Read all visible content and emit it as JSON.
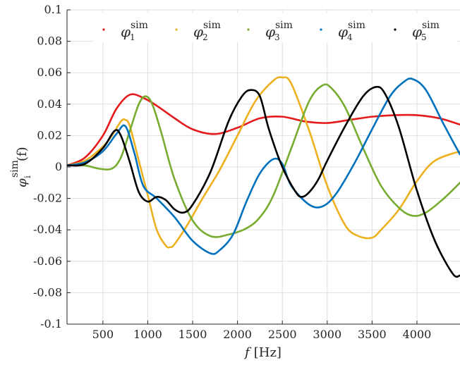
{
  "chart_data": {
    "type": "line",
    "xlabel": {
      "var": "f",
      "unit": "[Hz]"
    },
    "ylabel": {
      "base": "φ",
      "sup": "sim",
      "sub": "i",
      "arg": "(f)"
    },
    "xlim": [
      100,
      4480
    ],
    "ylim": [
      -0.1,
      0.1
    ],
    "xticks": [
      500,
      1000,
      1500,
      2000,
      2500,
      3000,
      3500,
      4000
    ],
    "yticks": [
      -0.1,
      -0.08,
      -0.06,
      -0.04,
      -0.02,
      0,
      0.02,
      0.04,
      0.06,
      0.08,
      0.1
    ],
    "ytick_labels": [
      "-0.1",
      "-0.08",
      "-0.06",
      "-0.04",
      "-0.02",
      "0",
      "0.02",
      "0.04",
      "0.06",
      "0.08",
      "0.1"
    ],
    "grid": true,
    "legend_position": "top",
    "series": [
      {
        "name": "φ1 sim",
        "base": "φ",
        "sub": "1",
        "sup": "sim",
        "color": "#e41a1c",
        "x": [
          100,
          300,
          500,
          650,
          800,
          950,
          1100,
          1300,
          1500,
          1750,
          2000,
          2250,
          2500,
          2750,
          3000,
          3250,
          3500,
          3750,
          4000,
          4250,
          4480
        ],
        "y": [
          0.001,
          0.006,
          0.02,
          0.037,
          0.046,
          0.044,
          0.039,
          0.031,
          0.024,
          0.021,
          0.025,
          0.031,
          0.032,
          0.029,
          0.028,
          0.03,
          0.032,
          0.033,
          0.033,
          0.031,
          0.027
        ]
      },
      {
        "name": "φ2 sim",
        "base": "φ",
        "sub": "2",
        "sup": "sim",
        "color": "#edb120",
        "x": [
          100,
          300,
          500,
          600,
          700,
          750,
          800,
          900,
          1000,
          1100,
          1200,
          1250,
          1300,
          1450,
          1600,
          1800,
          2000,
          2200,
          2400,
          2500,
          2600,
          2800,
          3000,
          3200,
          3350,
          3500,
          3600,
          3800,
          4000,
          4200,
          4480
        ],
        "y": [
          0.001,
          0.004,
          0.013,
          0.02,
          0.029,
          0.03,
          0.026,
          0.004,
          -0.018,
          -0.04,
          -0.05,
          -0.051,
          -0.049,
          -0.036,
          -0.021,
          -0.002,
          0.02,
          0.042,
          0.055,
          0.057,
          0.053,
          0.023,
          -0.012,
          -0.037,
          -0.044,
          -0.045,
          -0.04,
          -0.027,
          -0.009,
          0.004,
          0.01
        ]
      },
      {
        "name": "φ3 sim",
        "base": "φ",
        "sub": "3",
        "sup": "sim",
        "color": "#77ac30",
        "x": [
          100,
          300,
          450,
          600,
          700,
          800,
          900,
          975,
          1050,
          1150,
          1300,
          1500,
          1700,
          1900,
          2100,
          2250,
          2400,
          2600,
          2800,
          2950,
          3050,
          3200,
          3400,
          3600,
          3800,
          3950,
          4100,
          4300,
          4480
        ],
        "y": [
          0.001,
          0.001,
          -0.001,
          -0.001,
          0.006,
          0.023,
          0.04,
          0.045,
          0.04,
          0.022,
          -0.008,
          -0.034,
          -0.044,
          -0.043,
          -0.039,
          -0.032,
          -0.018,
          0.012,
          0.042,
          0.052,
          0.05,
          0.038,
          0.012,
          -0.012,
          -0.026,
          -0.031,
          -0.029,
          -0.02,
          -0.01
        ]
      },
      {
        "name": "φ4 sim",
        "base": "φ",
        "sub": "4",
        "sup": "sim",
        "color": "#0072bd",
        "x": [
          100,
          300,
          500,
          650,
          750,
          850,
          950,
          1100,
          1300,
          1500,
          1700,
          1800,
          1950,
          2100,
          2250,
          2400,
          2500,
          2600,
          2800,
          2950,
          3100,
          3300,
          3500,
          3700,
          3850,
          3950,
          4100,
          4300,
          4480
        ],
        "y": [
          0.001,
          0.003,
          0.01,
          0.021,
          0.026,
          0.009,
          -0.012,
          -0.02,
          -0.032,
          -0.047,
          -0.055,
          -0.053,
          -0.043,
          -0.022,
          -0.004,
          0.005,
          0.002,
          -0.012,
          -0.024,
          -0.025,
          -0.017,
          0.002,
          0.024,
          0.045,
          0.054,
          0.056,
          0.049,
          0.027,
          0.008
        ]
      },
      {
        "name": "φ5 sim",
        "base": "φ",
        "sub": "5",
        "sup": "sim",
        "color": "#000000",
        "x": [
          100,
          300,
          500,
          630,
          700,
          800,
          900,
          1000,
          1100,
          1200,
          1300,
          1400,
          1500,
          1700,
          1900,
          2050,
          2150,
          2250,
          2350,
          2500,
          2650,
          2720,
          2800,
          2900,
          3000,
          3200,
          3400,
          3550,
          3650,
          3800,
          4000,
          4200,
          4400,
          4480
        ],
        "y": [
          0.001,
          0.002,
          0.012,
          0.023,
          0.02,
          0.003,
          -0.016,
          -0.022,
          -0.019,
          -0.021,
          -0.027,
          -0.029,
          -0.024,
          -0.003,
          0.029,
          0.045,
          0.049,
          0.045,
          0.024,
          0.0,
          -0.016,
          -0.019,
          -0.016,
          -0.008,
          0.004,
          0.026,
          0.045,
          0.051,
          0.046,
          0.025,
          -0.015,
          -0.047,
          -0.068,
          -0.069
        ]
      }
    ]
  }
}
